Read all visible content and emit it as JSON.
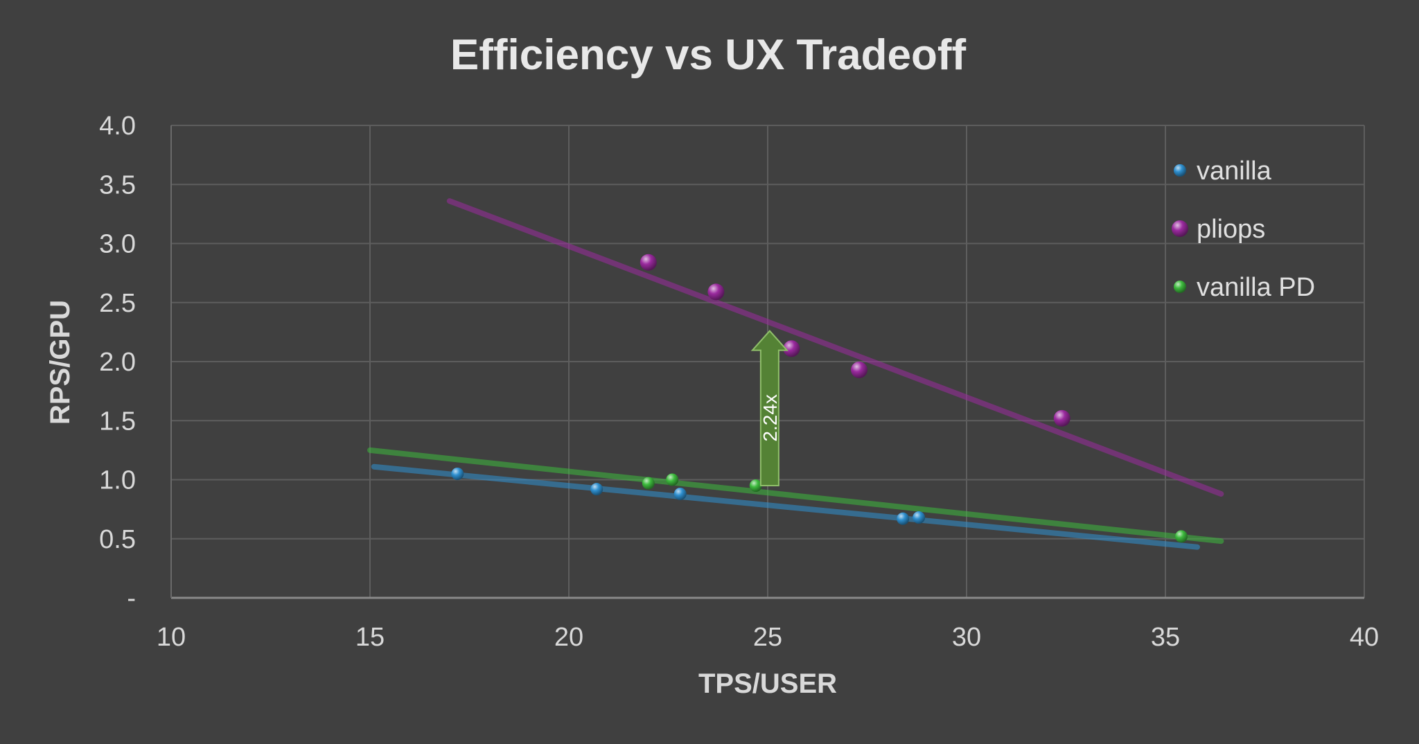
{
  "chart_data": {
    "type": "scatter",
    "title": "Efficiency vs UX Tradeoff",
    "xlabel": "TPS/USER",
    "ylabel": "RPS/GPU",
    "xlim": [
      10,
      40
    ],
    "ylim": [
      0,
      4
    ],
    "xticks": [
      10,
      15,
      20,
      25,
      30,
      35,
      40
    ],
    "xtick_labels": [
      "10",
      "15",
      "20",
      "25",
      "30",
      "35",
      "40"
    ],
    "yticks": [
      0,
      0.5,
      1.0,
      1.5,
      2.0,
      2.5,
      3.0,
      3.5,
      4.0
    ],
    "ytick_labels": [
      "-",
      "0.5",
      "1.0",
      "1.5",
      "2.0",
      "2.5",
      "3.0",
      "3.5",
      "4.0"
    ],
    "grid": true,
    "legend_position": "top-right",
    "series": [
      {
        "name": "vanilla",
        "color": "#2e8fcf",
        "points": [
          [
            17.2,
            1.05
          ],
          [
            20.7,
            0.92
          ],
          [
            22.8,
            0.88
          ],
          [
            28.4,
            0.67
          ],
          [
            28.8,
            0.68
          ]
        ],
        "trendline": [
          [
            15.1,
            1.11
          ],
          [
            35.8,
            0.43
          ]
        ]
      },
      {
        "name": "pliops",
        "color": "#9a2a9e",
        "points": [
          [
            22.0,
            2.84
          ],
          [
            23.7,
            2.59
          ],
          [
            25.6,
            2.11
          ],
          [
            27.3,
            1.93
          ],
          [
            32.4,
            1.52
          ]
        ],
        "trendline": [
          [
            17.0,
            3.36
          ],
          [
            36.4,
            0.88
          ]
        ]
      },
      {
        "name": "vanilla PD",
        "color": "#3dba3d",
        "points": [
          [
            22.0,
            0.97
          ],
          [
            22.6,
            1.0
          ],
          [
            24.7,
            0.95
          ],
          [
            35.4,
            0.52
          ]
        ],
        "trendline": [
          [
            15.0,
            1.25
          ],
          [
            36.4,
            0.48
          ]
        ]
      }
    ],
    "annotations": [
      {
        "type": "arrow",
        "x": 25.05,
        "y_from": 0.95,
        "y_to": 2.26,
        "label": "2.24x",
        "color": "#548235"
      }
    ]
  }
}
